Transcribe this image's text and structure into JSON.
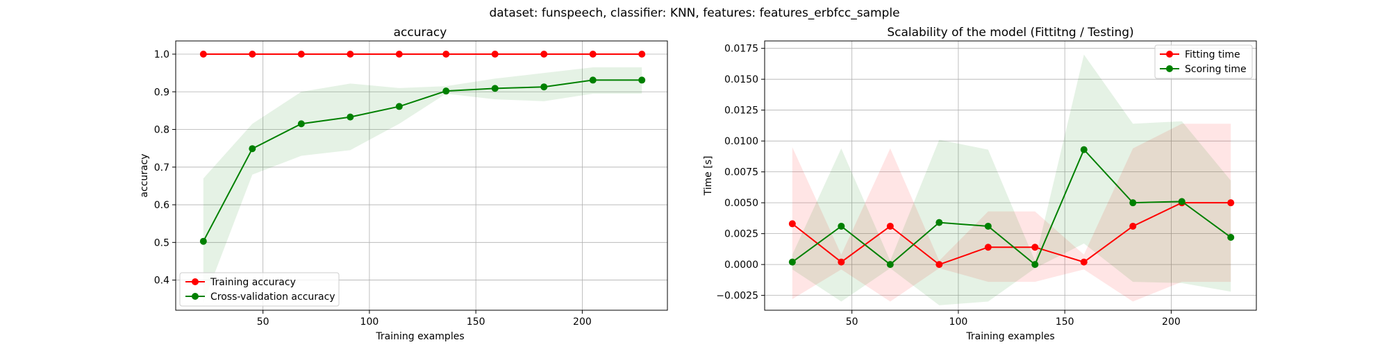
{
  "suptitle": "dataset: funspeech, classifier: KNN, features: features_erbfcc_sample",
  "chart_data": [
    {
      "type": "line",
      "title": "accuracy",
      "xlabel": "Training examples",
      "ylabel": "accuracy",
      "xlim": [
        9,
        240
      ],
      "ylim": [
        0.32,
        1.035
      ],
      "xticks": [
        50,
        100,
        150,
        200
      ],
      "yticks": [
        0.4,
        0.5,
        0.6,
        0.7,
        0.8,
        0.9,
        1.0
      ],
      "ytick_labels": [
        "0.4",
        "0.5",
        "0.6",
        "0.7",
        "0.8",
        "0.9",
        "1.0"
      ],
      "grid": true,
      "legend_position": "lower-left",
      "x": [
        22,
        45,
        68,
        91,
        114,
        136,
        159,
        182,
        205,
        228
      ],
      "series": [
        {
          "name": "Training accuracy",
          "color": "#ff0000",
          "values": [
            1.0,
            1.0,
            1.0,
            1.0,
            1.0,
            1.0,
            1.0,
            1.0,
            1.0,
            1.0
          ],
          "lower": [
            1.0,
            1.0,
            1.0,
            1.0,
            1.0,
            1.0,
            1.0,
            1.0,
            1.0,
            1.0
          ],
          "upper": [
            1.0,
            1.0,
            1.0,
            1.0,
            1.0,
            1.0,
            1.0,
            1.0,
            1.0,
            1.0
          ]
        },
        {
          "name": "Cross-validation accuracy",
          "color": "#008000",
          "values": [
            0.503,
            0.749,
            0.815,
            0.833,
            0.861,
            0.902,
            0.909,
            0.913,
            0.931,
            0.931
          ],
          "lower": [
            0.34,
            0.68,
            0.73,
            0.745,
            0.815,
            0.895,
            0.88,
            0.875,
            0.895,
            0.895
          ],
          "upper": [
            0.67,
            0.815,
            0.9,
            0.922,
            0.91,
            0.915,
            0.935,
            0.95,
            0.965,
            0.965
          ]
        }
      ]
    },
    {
      "type": "line",
      "title": "Scalability of the model (Fittitng / Testing)",
      "xlabel": "Training examples",
      "ylabel": "Time [s]",
      "xlim": [
        9,
        240
      ],
      "ylim": [
        -0.0037,
        0.0181
      ],
      "xticks": [
        50,
        100,
        150,
        200
      ],
      "yticks": [
        -0.0025,
        0.0,
        0.0025,
        0.005,
        0.0075,
        0.01,
        0.0125,
        0.015,
        0.0175
      ],
      "ytick_labels": [
        "−0.0025",
        "0.0000",
        "0.0025",
        "0.0050",
        "0.0075",
        "0.0100",
        "0.0125",
        "0.0150",
        "0.0175"
      ],
      "grid": true,
      "legend_position": "upper-right",
      "x": [
        22,
        45,
        68,
        91,
        114,
        136,
        159,
        182,
        205,
        228
      ],
      "series": [
        {
          "name": "Fitting time",
          "color": "#ff0000",
          "values": [
            0.0033,
            0.0002,
            0.0031,
            0.0,
            0.0014,
            0.0014,
            0.0002,
            0.0031,
            0.005,
            0.005
          ],
          "lower": [
            -0.0028,
            -0.0004,
            -0.003,
            -0.0003,
            -0.0014,
            -0.0014,
            -0.0004,
            -0.003,
            -0.0014,
            -0.0014
          ],
          "upper": [
            0.0095,
            0.0008,
            0.0094,
            0.0003,
            0.0043,
            0.0043,
            0.0008,
            0.0094,
            0.0114,
            0.0114
          ]
        },
        {
          "name": "Scoring time",
          "color": "#008000",
          "values": [
            0.0002,
            0.0031,
            0.0,
            0.0034,
            0.0031,
            0.0,
            0.0093,
            0.005,
            0.0051,
            0.0022
          ],
          "lower": [
            -0.0004,
            -0.003,
            -0.0003,
            -0.0033,
            -0.003,
            -0.0003,
            0.0017,
            -0.0014,
            -0.0015,
            -0.0022
          ],
          "upper": [
            0.0008,
            0.0094,
            0.0003,
            0.0101,
            0.0093,
            0.0003,
            0.017,
            0.0114,
            0.0116,
            0.0068
          ]
        }
      ]
    }
  ]
}
